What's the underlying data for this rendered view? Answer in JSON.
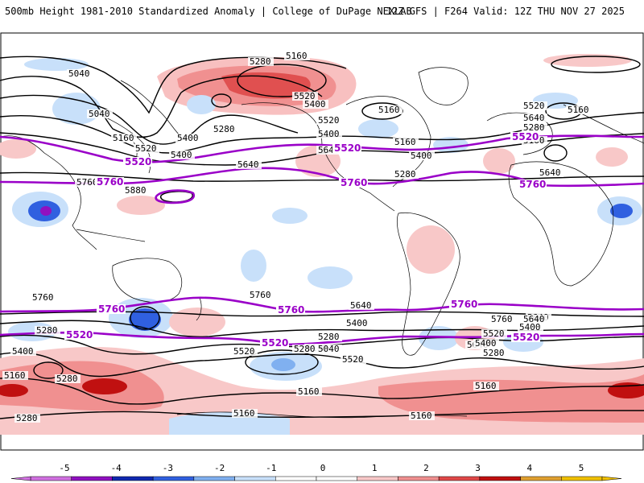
{
  "header": {
    "title_left": "500mb Height 1981-2010 Standardized Anomaly | College of DuPage NEXLAB",
    "title_right": "12Z GFS | F264 Valid: 12Z THU NOV 27 2025"
  },
  "colors": {
    "contour": "#000000",
    "highlight_contour": "#9a00c8",
    "coast": "#000000"
  },
  "contour_labels": {
    "black": [
      "5280",
      "5160",
      "5040",
      "5520",
      "5400",
      "5160",
      "5160",
      "5040",
      "5400",
      "5280",
      "5400",
      "5520",
      "5640",
      "5160",
      "5520",
      "5400",
      "5640",
      "5880",
      "5760",
      "5160",
      "5280",
      "5400",
      "5520",
      "5640",
      "5280",
      "5160",
      "5640",
      "5760",
      "5640",
      "5400",
      "5760",
      "5640",
      "5400",
      "5280",
      "5520",
      "5400",
      "5280",
      "5160",
      "5040",
      "5520",
      "5280",
      "5040",
      "5160",
      "5160",
      "5640",
      "5760",
      "5400",
      "5520",
      "5280",
      "5280",
      "5160",
      "5280",
      "5160",
      "5160"
    ],
    "purple": [
      "5520",
      "5760",
      "5520",
      "5760",
      "5520",
      "5760",
      "5760",
      "5760",
      "5520",
      "5520",
      "5760",
      "5520"
    ]
  },
  "colorbar": {
    "ticks": [
      "-5",
      "-4",
      "-3",
      "-2",
      "-1",
      "0",
      "1",
      "2",
      "3",
      "4",
      "5"
    ],
    "colors": [
      "#d070e0",
      "#9010c0",
      "#1028b0",
      "#3060e0",
      "#80b0f0",
      "#c8e0fa",
      "#ffffff",
      "#ffffff",
      "#f8c8c8",
      "#f09090",
      "#e04848",
      "#c01010",
      "#e0a030",
      "#f0c000"
    ]
  }
}
